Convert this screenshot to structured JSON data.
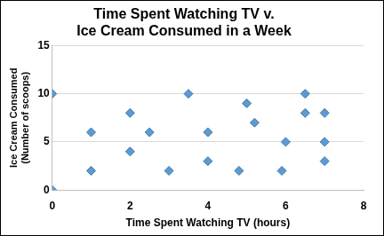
{
  "chart_data": {
    "type": "scatter",
    "title": [
      "Time Spent Watching TV v.",
      "Ice Cream Consumed in a Week"
    ],
    "x_label": "Time Spent Watching TV (hours)",
    "y_label": [
      "Ice Cream Consumed",
      "(Number of scoops)"
    ],
    "x": [
      0,
      0,
      1,
      1,
      2,
      2,
      2.5,
      3,
      3.5,
      4,
      4,
      4.8,
      5,
      5.2,
      5.9,
      6,
      6.5,
      6.5,
      7,
      7,
      7
    ],
    "values": [
      10,
      0,
      6,
      2,
      8,
      4,
      6,
      2,
      10,
      6,
      3,
      2,
      9,
      7,
      2,
      5,
      10,
      8,
      8,
      5,
      3
    ],
    "color": "#5b9bd5",
    "marker": "diamond",
    "xlim": [
      0,
      8
    ],
    "xticks": [
      0,
      2,
      4,
      6,
      8
    ],
    "ylim": [
      0,
      15
    ],
    "yticks": [
      0,
      5,
      10,
      15
    ],
    "grid": "y"
  }
}
